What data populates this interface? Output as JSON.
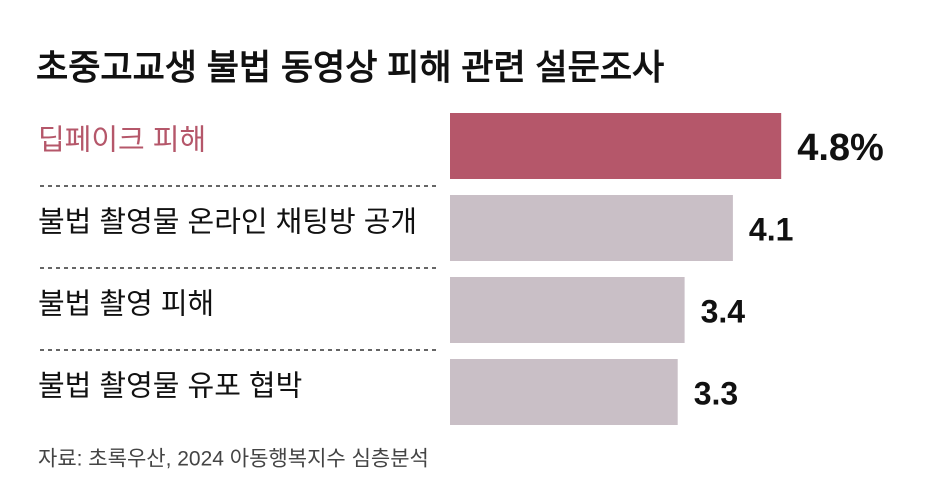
{
  "chart_data": {
    "type": "bar",
    "orientation": "horizontal",
    "title": "초중고교생 불법 동영상 피해 관련 설문조사",
    "categories": [
      "딥페이크 피해",
      "불법 촬영물 온라인 채팅방 공개",
      "불법 촬영 피해",
      "불법 촬영물 유포 협박"
    ],
    "values": [
      4.8,
      4.1,
      3.4,
      3.3
    ],
    "value_labels": [
      "4.8%",
      "4.1",
      "3.4",
      "3.3"
    ],
    "colors": [
      "#b5576a",
      "#c9bfc6",
      "#c9bfc6",
      "#c9bfc6"
    ],
    "xlim": [
      0,
      6
    ],
    "source": "자료: 초록우산, 2024 아동행복지수 심층분석"
  }
}
